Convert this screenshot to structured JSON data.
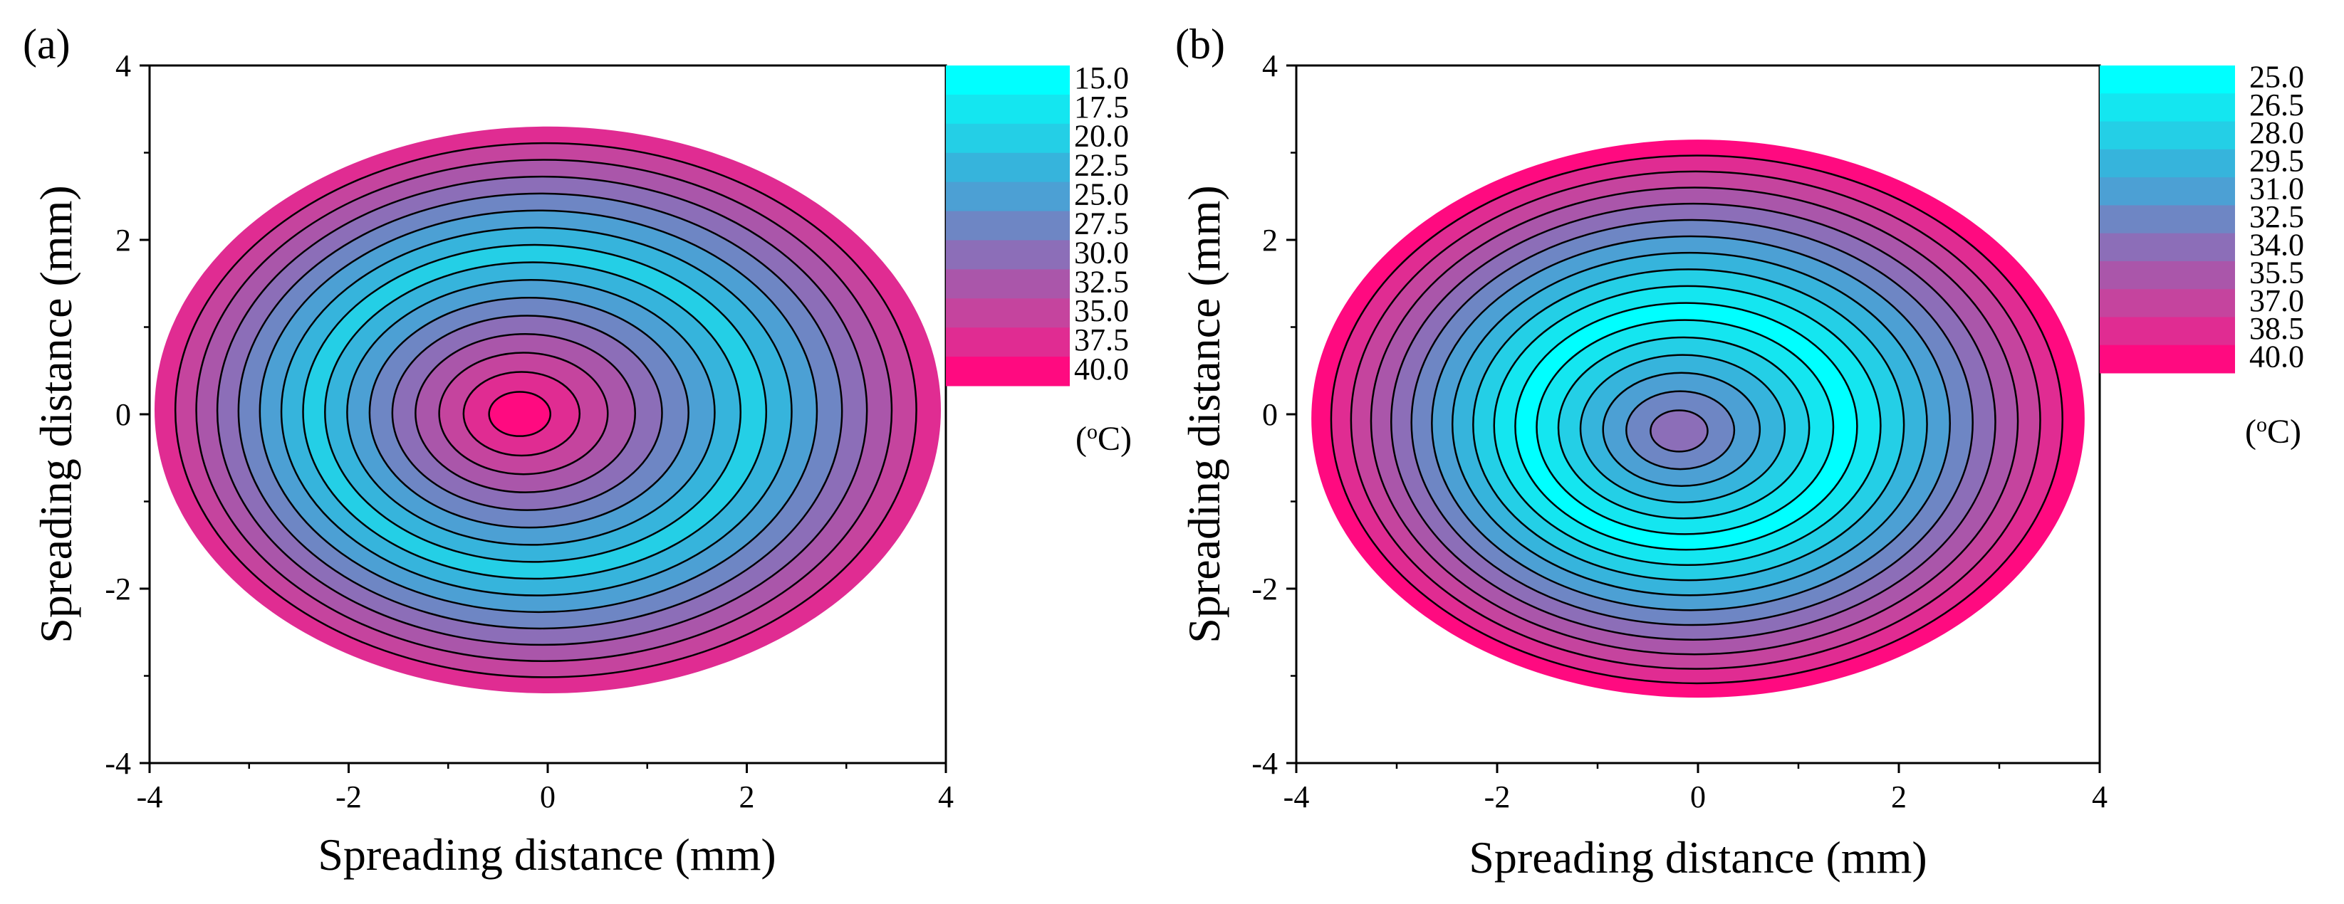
{
  "chart_data": [
    {
      "type": "contour",
      "panel_label": "(a)",
      "xlabel": "Spreading distance (mm)",
      "ylabel": "Spreading distance (mm)",
      "xlim": [
        -4,
        4
      ],
      "ylim": [
        -4,
        4
      ],
      "x_ticks": [
        "-4",
        "-2",
        "0",
        "2",
        "4"
      ],
      "y_ticks": [
        "-4",
        "-2",
        "0",
        "2",
        "4"
      ],
      "colorbar": {
        "levels": [
          "15.0",
          "17.5",
          "20.0",
          "22.5",
          "25.0",
          "27.5",
          "30.0",
          "32.5",
          "35.0",
          "37.5",
          "40.0"
        ],
        "colors": [
          "#00FFFF",
          "#14E6F0",
          "#24CFE6",
          "#36B4DC",
          "#4CA0D4",
          "#6E86C4",
          "#8C6EB8",
          "#AA56AA",
          "#C5449E",
          "#E02C92",
          "#FF0A80"
        ],
        "unit": "(oC)"
      },
      "annotation": "outer rim ~37.5 °C, broad ring ~22.5–25 °C, hot core ~40 °C near center",
      "center": [
        -0.3,
        0.0
      ]
    },
    {
      "type": "contour",
      "panel_label": "(b)",
      "xlabel": "Spreading distance (mm)",
      "ylabel": "Spreading distance (mm)",
      "xlim": [
        -4,
        4
      ],
      "ylim": [
        -4,
        4
      ],
      "x_ticks": [
        "-4",
        "-2",
        "0",
        "2",
        "4"
      ],
      "y_ticks": [
        "-4",
        "-2",
        "0",
        "2",
        "4"
      ],
      "colorbar": {
        "levels": [
          "25.0",
          "26.5",
          "28.0",
          "29.5",
          "31.0",
          "32.5",
          "34.0",
          "35.5",
          "37.0",
          "38.5",
          "40.0"
        ],
        "colors": [
          "#00FFFF",
          "#14E6F0",
          "#24CFE6",
          "#36B4DC",
          "#4CA0D4",
          "#6E86C4",
          "#8C6EB8",
          "#AA56AA",
          "#C5449E",
          "#E02C92",
          "#FF0A80"
        ],
        "unit": "(oC)"
      },
      "annotation": "outer rim ~40 °C, cool ring ~25 °C, warmer core ~34 °C near center",
      "center": [
        -0.2,
        -0.2
      ]
    }
  ]
}
